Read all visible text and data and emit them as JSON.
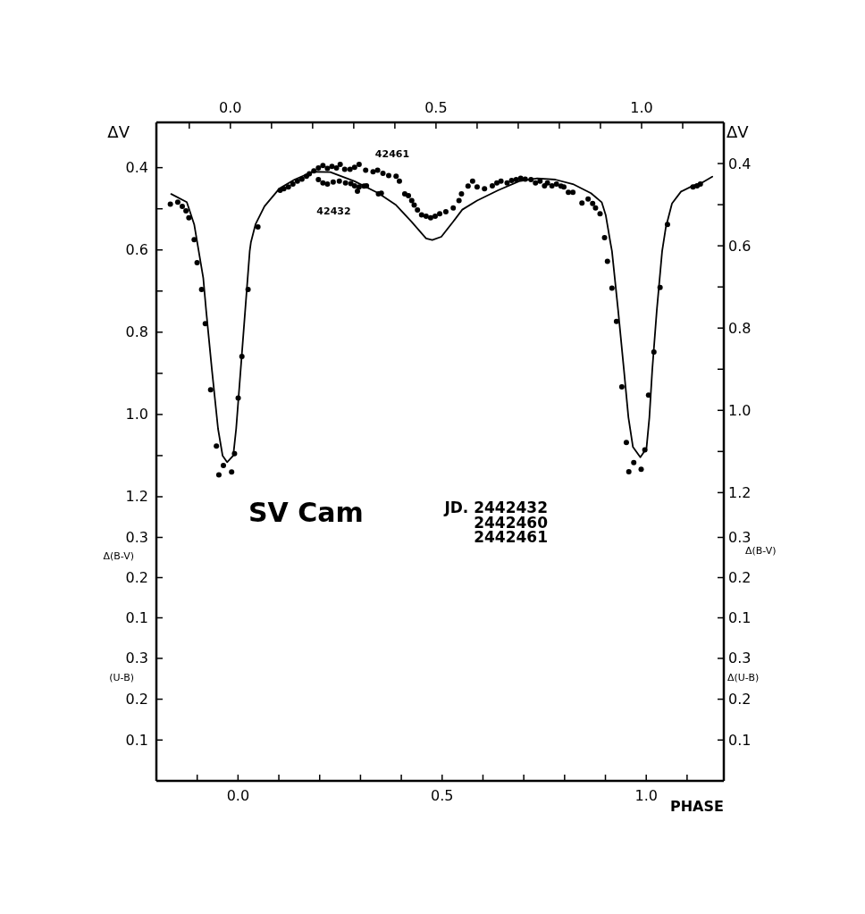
{
  "chart_data": [
    {
      "type": "scatter",
      "title": "SV Cam",
      "ylabel": "ΔV",
      "y2label": "ΔV",
      "xlim": [
        -0.18,
        1.2
      ],
      "xticks": [
        {
          "value": -0.1,
          "label": null
        },
        {
          "value": 0,
          "label": "0.0"
        },
        {
          "value": 0.1,
          "label": null
        },
        {
          "value": 0.2,
          "label": null
        },
        {
          "value": 0.3,
          "label": null
        },
        {
          "value": 0.4,
          "label": null
        },
        0.5,
        {
          "value": 0.6,
          "label": null
        },
        {
          "value": 0.7,
          "label": null
        },
        {
          "value": 0.8,
          "label": null
        },
        {
          "value": 0.9,
          "label": null
        },
        {
          "value": 1,
          "label": "1.0"
        },
        {
          "value": 1.1,
          "label": null
        }
      ],
      "ylim": [
        1.25,
        0.29
      ],
      "yticks": [
        0.4,
        {
          "value": 0.5,
          "label": null
        },
        0.6,
        {
          "value": 0.7,
          "label": null
        },
        0.8,
        {
          "value": 0.9,
          "label": null
        },
        {
          "value": 1,
          "label": "1.0"
        },
        {
          "value": 1.1,
          "label": null
        },
        1.2
      ],
      "y2lim": [
        1.26,
        0.3
      ],
      "y2ticks": [
        0.4,
        {
          "value": 0.5,
          "label": null
        },
        0.6,
        {
          "value": 0.7,
          "label": null
        },
        0.8,
        {
          "value": 0.9,
          "label": null
        },
        {
          "value": 1,
          "label": "1.0"
        },
        {
          "value": 1.1,
          "label": null
        },
        1.2
      ],
      "series": [
        {
          "color": "#000000",
          "marker": "circle",
          "x": [
            -0.146,
            -0.128,
            -0.117,
            -0.108,
            -0.101,
            -0.088,
            -0.081,
            -0.07,
            -0.061,
            -0.048,
            -0.034,
            -0.028,
            -0.017,
            0.003,
            0.01,
            0.019,
            0.028,
            0.043,
            0.067,
            0.121,
            0.13,
            0.141,
            0.152,
            0.163,
            0.174,
            0.185,
            0.192,
            0.203,
            0.214,
            0.225,
            0.236,
            0.247,
            0.258,
            0.267,
            0.278,
            0.291,
            0.302,
            0.313,
            0.329,
            0.347,
            0.358,
            0.371,
            0.385,
            0.403,
            0.411,
            0.424,
            0.433,
            0.441,
            0.447,
            0.455,
            0.465,
            0.476,
            0.487,
            0.498,
            0.509,
            0.524,
            0.542,
            0.556,
            0.562,
            0.578,
            0.589,
            0.6,
            0.618,
            0.637,
            0.648,
            0.658,
            0.673,
            0.684,
            0.695,
            0.706,
            0.717,
            0.731,
            0.742,
            0.753,
            0.764,
            0.771,
            0.782,
            0.793,
            0.804,
            0.811,
            0.822,
            0.833,
            0.855,
            0.87,
            0.881,
            0.888,
            0.899,
            0.91,
            0.917,
            0.928,
            0.939,
            0.952,
            0.963,
            0.969,
            0.981,
            0.999,
            1.008,
            1.017,
            1.03,
            1.045,
            1.063,
            1.125,
            1.135,
            1.143,
            0.214,
            0.225,
            0.236,
            0.25,
            0.265,
            0.28,
            0.293,
            0.302,
            0.313,
            0.309,
            0.325,
            0.331,
            0.36,
            0.367
          ],
          "values": [
            0.489,
            0.484,
            0.494,
            0.505,
            0.522,
            0.575,
            0.631,
            0.696,
            0.779,
            0.94,
            1.077,
            1.147,
            1.124,
            1.14,
            1.095,
            0.96,
            0.859,
            0.696,
            0.544,
            0.455,
            0.451,
            0.447,
            0.44,
            0.433,
            0.428,
            0.421,
            0.415,
            0.408,
            0.401,
            0.395,
            0.402,
            0.397,
            0.401,
            0.392,
            0.404,
            0.404,
            0.399,
            0.392,
            0.406,
            0.41,
            0.406,
            0.414,
            0.419,
            0.421,
            0.433,
            0.464,
            0.468,
            0.48,
            0.491,
            0.503,
            0.515,
            0.518,
            0.522,
            0.518,
            0.512,
            0.507,
            0.498,
            0.48,
            0.464,
            0.445,
            0.433,
            0.447,
            0.451,
            0.444,
            0.437,
            0.433,
            0.437,
            0.431,
            0.429,
            0.426,
            0.428,
            0.429,
            0.437,
            0.433,
            0.444,
            0.437,
            0.444,
            0.44,
            0.445,
            0.447,
            0.46,
            0.46,
            0.486,
            0.476,
            0.487,
            0.498,
            0.512,
            0.57,
            0.628,
            0.693,
            0.774,
            0.933,
            1.068,
            1.139,
            1.117,
            1.133,
            1.086,
            0.953,
            0.848,
            0.691,
            0.538,
            0.447,
            0.444,
            0.44,
            0.429,
            0.437,
            0.44,
            0.435,
            0.433,
            0.437,
            0.439,
            0.444,
            0.447,
            0.457,
            0.445,
            0.444,
            0.464,
            0.462
          ]
        },
        {
          "type": "line",
          "color": "#000000",
          "x": [
            -0.144,
            -0.106,
            -0.088,
            -0.077,
            -0.066,
            -0.059,
            -0.045,
            -0.03,
            -0.019,
            -0.008,
            0.007,
            0.014,
            0.025,
            0.036,
            0.047,
            0.05,
            0.061,
            0.083,
            0.119,
            0.156,
            0.2,
            0.243,
            0.302,
            0.36,
            0.403,
            0.44,
            0.476,
            0.491,
            0.513,
            0.542,
            0.564,
            0.6,
            0.651,
            0.702,
            0.746,
            0.79,
            0.833,
            0.877,
            0.903,
            0.913,
            0.924,
            0.928,
            0.943,
            0.957,
            0.968,
            0.979,
            0.997,
            1.012,
            1.019,
            1.026,
            1.037,
            1.05,
            1.059,
            1.074,
            1.096,
            1.125,
            1.146,
            1.172
          ],
          "values": [
            0.464,
            0.484,
            0.538,
            0.603,
            0.668,
            0.747,
            0.891,
            1.035,
            1.1,
            1.116,
            1.1,
            1.035,
            0.891,
            0.747,
            0.603,
            0.581,
            0.538,
            0.494,
            0.451,
            0.429,
            0.41,
            0.411,
            0.433,
            0.462,
            0.491,
            0.531,
            0.572,
            0.576,
            0.568,
            0.531,
            0.502,
            0.48,
            0.455,
            0.433,
            0.426,
            0.429,
            0.44,
            0.462,
            0.484,
            0.516,
            0.581,
            0.603,
            0.747,
            0.891,
            1.007,
            1.079,
            1.104,
            1.082,
            1.007,
            0.891,
            0.747,
            0.603,
            0.545,
            0.487,
            0.458,
            0.444,
            0.437,
            0.422
          ]
        }
      ],
      "annotations": [
        "42461",
        "42432",
        "JD. 2442432",
        "2442460",
        "2442461"
      ]
    },
    {
      "type": "scatter",
      "ylabel": "Δ(B-V)",
      "y2label": "Δ(B-V)",
      "xlim": [
        -0.2,
        1.19
      ],
      "ylim": [
        0.05,
        0.35
      ],
      "yticks": [
        0.1,
        0.2,
        0.3
      ],
      "y2lim": [
        0.05,
        0.35
      ],
      "y2ticks": [
        0.1,
        0.2,
        0.3
      ],
      "tick_labels": "y"
    },
    {
      "type": "scatter",
      "xlabel": "PHASE",
      "ylabel": "(U-B)",
      "y2label": "Δ(U-B)",
      "xlim": [
        -0.2,
        1.19
      ],
      "xticks": [
        {
          "value": -0.1,
          "label": null
        },
        {
          "value": 0,
          "label": "0.0"
        },
        {
          "value": 0.1,
          "label": null
        },
        {
          "value": 0.2,
          "label": null
        },
        {
          "value": 0.3,
          "label": null
        },
        {
          "value": 0.4,
          "label": null
        },
        0.5,
        {
          "value": 0.6,
          "label": null
        },
        {
          "value": 0.7,
          "label": null
        },
        {
          "value": 0.8,
          "label": null
        },
        {
          "value": 0.9,
          "label": null
        },
        {
          "value": 1,
          "label": "1.0"
        },
        {
          "value": 1.1,
          "label": null
        }
      ],
      "ylim": [
        0,
        0.35
      ],
      "yticks": [
        0.1,
        0.2,
        0.3
      ],
      "y2lim": [
        0,
        0.35
      ],
      "y2ticks": [
        0.1,
        0.2,
        0.3
      ]
    }
  ]
}
